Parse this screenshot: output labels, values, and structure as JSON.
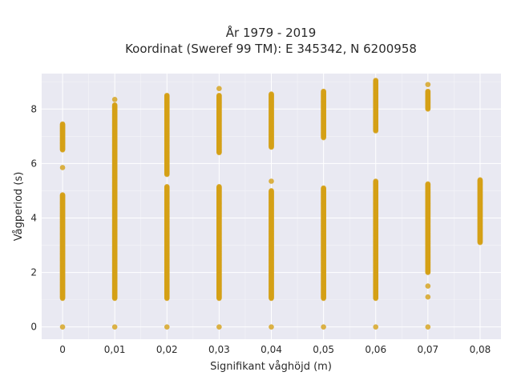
{
  "chart_data": {
    "type": "scatter",
    "title_line1": "År 1979 - 2019",
    "title_line2": "Koordinat (Sweref 99 TM): E 345342, N 6200958",
    "xlabel": "Signifikant våghöjd (m)",
    "ylabel": "Vågperiod (s)",
    "x_ticks": [
      "0",
      "0,01",
      "0,02",
      "0,03",
      "0,04",
      "0,05",
      "0,06",
      "0,07",
      "0,08"
    ],
    "x_tick_values": [
      0,
      0.01,
      0.02,
      0.03,
      0.04,
      0.05,
      0.06,
      0.07,
      0.08
    ],
    "y_ticks": [
      "0",
      "2",
      "4",
      "6",
      "8"
    ],
    "y_tick_values": [
      0,
      2,
      4,
      6,
      8
    ],
    "xlim": [
      -0.004,
      0.084
    ],
    "ylim": [
      -0.45,
      9.3
    ],
    "grid": true,
    "marker_color": "#d4a017",
    "background_color": "#e9e9f2",
    "columns": [
      {
        "x": 0,
        "zero": true,
        "segments": [
          [
            1.05,
            4.85
          ],
          [
            6.5,
            7.45
          ]
        ],
        "outliers": [
          5.85
        ]
      },
      {
        "x": 0.01,
        "zero": true,
        "segments": [
          [
            1.05,
            5.5
          ],
          [
            5.5,
            8.15
          ]
        ],
        "outliers": [
          8.35
        ]
      },
      {
        "x": 0.02,
        "zero": true,
        "segments": [
          [
            1.05,
            5.15
          ],
          [
            5.6,
            8.5
          ]
        ],
        "outliers": []
      },
      {
        "x": 0.03,
        "zero": true,
        "segments": [
          [
            1.05,
            5.15
          ],
          [
            6.4,
            8.5
          ]
        ],
        "outliers": [
          8.75
        ]
      },
      {
        "x": 0.04,
        "zero": true,
        "segments": [
          [
            1.05,
            5.0
          ],
          [
            6.6,
            8.55
          ]
        ],
        "outliers": [
          5.35
        ]
      },
      {
        "x": 0.05,
        "zero": true,
        "segments": [
          [
            1.05,
            5.1
          ],
          [
            6.95,
            8.65
          ]
        ],
        "outliers": []
      },
      {
        "x": 0.06,
        "zero": true,
        "segments": [
          [
            1.05,
            5.35
          ],
          [
            7.2,
            9.05
          ]
        ],
        "outliers": []
      },
      {
        "x": 0.07,
        "zero": true,
        "segments": [
          [
            2.0,
            5.25
          ],
          [
            8.0,
            8.65
          ]
        ],
        "outliers": [
          1.5,
          1.1,
          8.9
        ]
      },
      {
        "x": 0.08,
        "zero": false,
        "segments": [
          [
            3.1,
            5.4
          ]
        ],
        "outliers": []
      }
    ]
  }
}
